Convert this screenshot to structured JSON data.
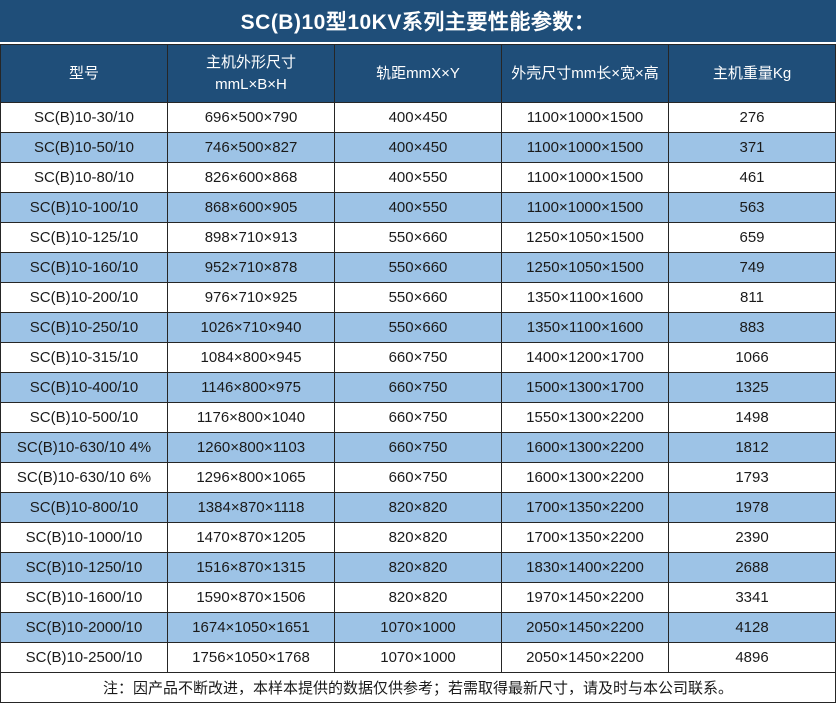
{
  "title": "SC(B)10型10KV系列主要性能参数：",
  "colors": {
    "header_bg": "#1F4E79",
    "alt_row_bg": "#9DC3E6",
    "header_text": "#FFFFFF",
    "border": "#262626",
    "data_text": "#1A1A1A"
  },
  "table": {
    "column_keys": [
      "model",
      "unit-dimensions",
      "track-gauge",
      "shell-dimensions",
      "weight"
    ],
    "headers": [
      {
        "label": "型号",
        "sub": ""
      },
      {
        "label": "主机外形尺寸",
        "sub": "mmL×B×H"
      },
      {
        "label": "轨距mmX×Y",
        "sub": ""
      },
      {
        "label": "外壳尺寸mm长×宽×高",
        "sub": ""
      },
      {
        "label": "主机重量Kg",
        "sub": ""
      }
    ],
    "rows": [
      [
        "SC(B)10-30/10",
        "696×500×790",
        "400×450",
        "1100×1000×1500",
        "276"
      ],
      [
        "SC(B)10-50/10",
        "746×500×827",
        "400×450",
        "1100×1000×1500",
        "371"
      ],
      [
        "SC(B)10-80/10",
        "826×600×868",
        "400×550",
        "1100×1000×1500",
        "461"
      ],
      [
        "SC(B)10-100/10",
        "868×600×905",
        "400×550",
        "1100×1000×1500",
        "563"
      ],
      [
        "SC(B)10-125/10",
        "898×710×913",
        "550×660",
        "1250×1050×1500",
        "659"
      ],
      [
        "SC(B)10-160/10",
        "952×710×878",
        "550×660",
        "1250×1050×1500",
        "749"
      ],
      [
        "SC(B)10-200/10",
        "976×710×925",
        "550×660",
        "1350×1100×1600",
        "811"
      ],
      [
        "SC(B)10-250/10",
        "1026×710×940",
        "550×660",
        "1350×1100×1600",
        "883"
      ],
      [
        "SC(B)10-315/10",
        "1084×800×945",
        "660×750",
        "1400×1200×1700",
        "1066"
      ],
      [
        "SC(B)10-400/10",
        "1146×800×975",
        "660×750",
        "1500×1300×1700",
        "1325"
      ],
      [
        "SC(B)10-500/10",
        "1176×800×1040",
        "660×750",
        "1550×1300×2200",
        "1498"
      ],
      [
        "SC(B)10-630/10 4%",
        "1260×800×1103",
        "660×750",
        "1600×1300×2200",
        "1812"
      ],
      [
        "SC(B)10-630/10 6%",
        "1296×800×1065",
        "660×750",
        "1600×1300×2200",
        "1793"
      ],
      [
        "SC(B)10-800/10",
        "1384×870×1118",
        "820×820",
        "1700×1350×2200",
        "1978"
      ],
      [
        "SC(B)10-1000/10",
        "1470×870×1205",
        "820×820",
        "1700×1350×2200",
        "2390"
      ],
      [
        "SC(B)10-1250/10",
        "1516×870×1315",
        "820×820",
        "1830×1400×2200",
        "2688"
      ],
      [
        "SC(B)10-1600/10",
        "1590×870×1506",
        "820×820",
        "1970×1450×2200",
        "3341"
      ],
      [
        "SC(B)10-2000/10",
        "1674×1050×1651",
        "1070×1000",
        "2050×1450×2200",
        "4128"
      ],
      [
        "SC(B)10-2500/10",
        "1756×1050×1768",
        "1070×1000",
        "2050×1450×2200",
        "4896"
      ]
    ]
  },
  "note": "注：因产品不断改进，本样本提供的数据仅供参考；若需取得最新尺寸，请及时与本公司联系。"
}
